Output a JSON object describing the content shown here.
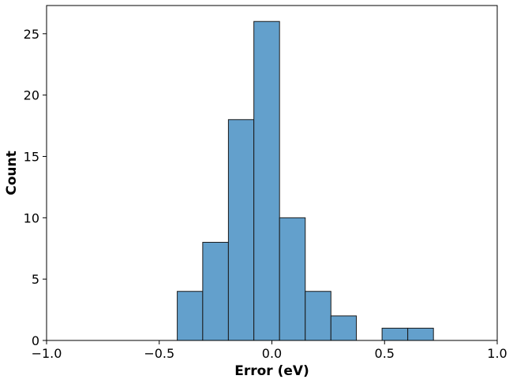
{
  "chart_data": {
    "type": "bar",
    "title": "",
    "xlabel": "Error (eV)",
    "ylabel": "Count",
    "xlim": [
      -1.0,
      1.0
    ],
    "ylim": [
      0,
      27.3
    ],
    "bar_color": "#63a0cc",
    "edge_color": "#1a1a1a",
    "grid": false,
    "bins": [
      {
        "x0": -0.42,
        "x1": -0.307,
        "count": 4
      },
      {
        "x0": -0.307,
        "x1": -0.193,
        "count": 8
      },
      {
        "x0": -0.193,
        "x1": -0.08,
        "count": 18
      },
      {
        "x0": -0.08,
        "x1": 0.034,
        "count": 26
      },
      {
        "x0": 0.034,
        "x1": 0.148,
        "count": 10
      },
      {
        "x0": 0.148,
        "x1": 0.262,
        "count": 4
      },
      {
        "x0": 0.262,
        "x1": 0.375,
        "count": 2
      },
      {
        "x0": 0.375,
        "x1": 0.489,
        "count": 0
      },
      {
        "x0": 0.489,
        "x1": 0.603,
        "count": 1
      },
      {
        "x0": 0.603,
        "x1": 0.717,
        "count": 1
      }
    ],
    "xticks": [
      {
        "value": -1.0,
        "label": "−1.0"
      },
      {
        "value": -0.5,
        "label": "−0.5"
      },
      {
        "value": 0.0,
        "label": "0.0"
      },
      {
        "value": 0.5,
        "label": "0.5"
      },
      {
        "value": 1.0,
        "label": "1.0"
      }
    ],
    "yticks": [
      {
        "value": 0,
        "label": "0"
      },
      {
        "value": 5,
        "label": "5"
      },
      {
        "value": 10,
        "label": "10"
      },
      {
        "value": 15,
        "label": "15"
      },
      {
        "value": 20,
        "label": "20"
      },
      {
        "value": 25,
        "label": "25"
      }
    ]
  }
}
